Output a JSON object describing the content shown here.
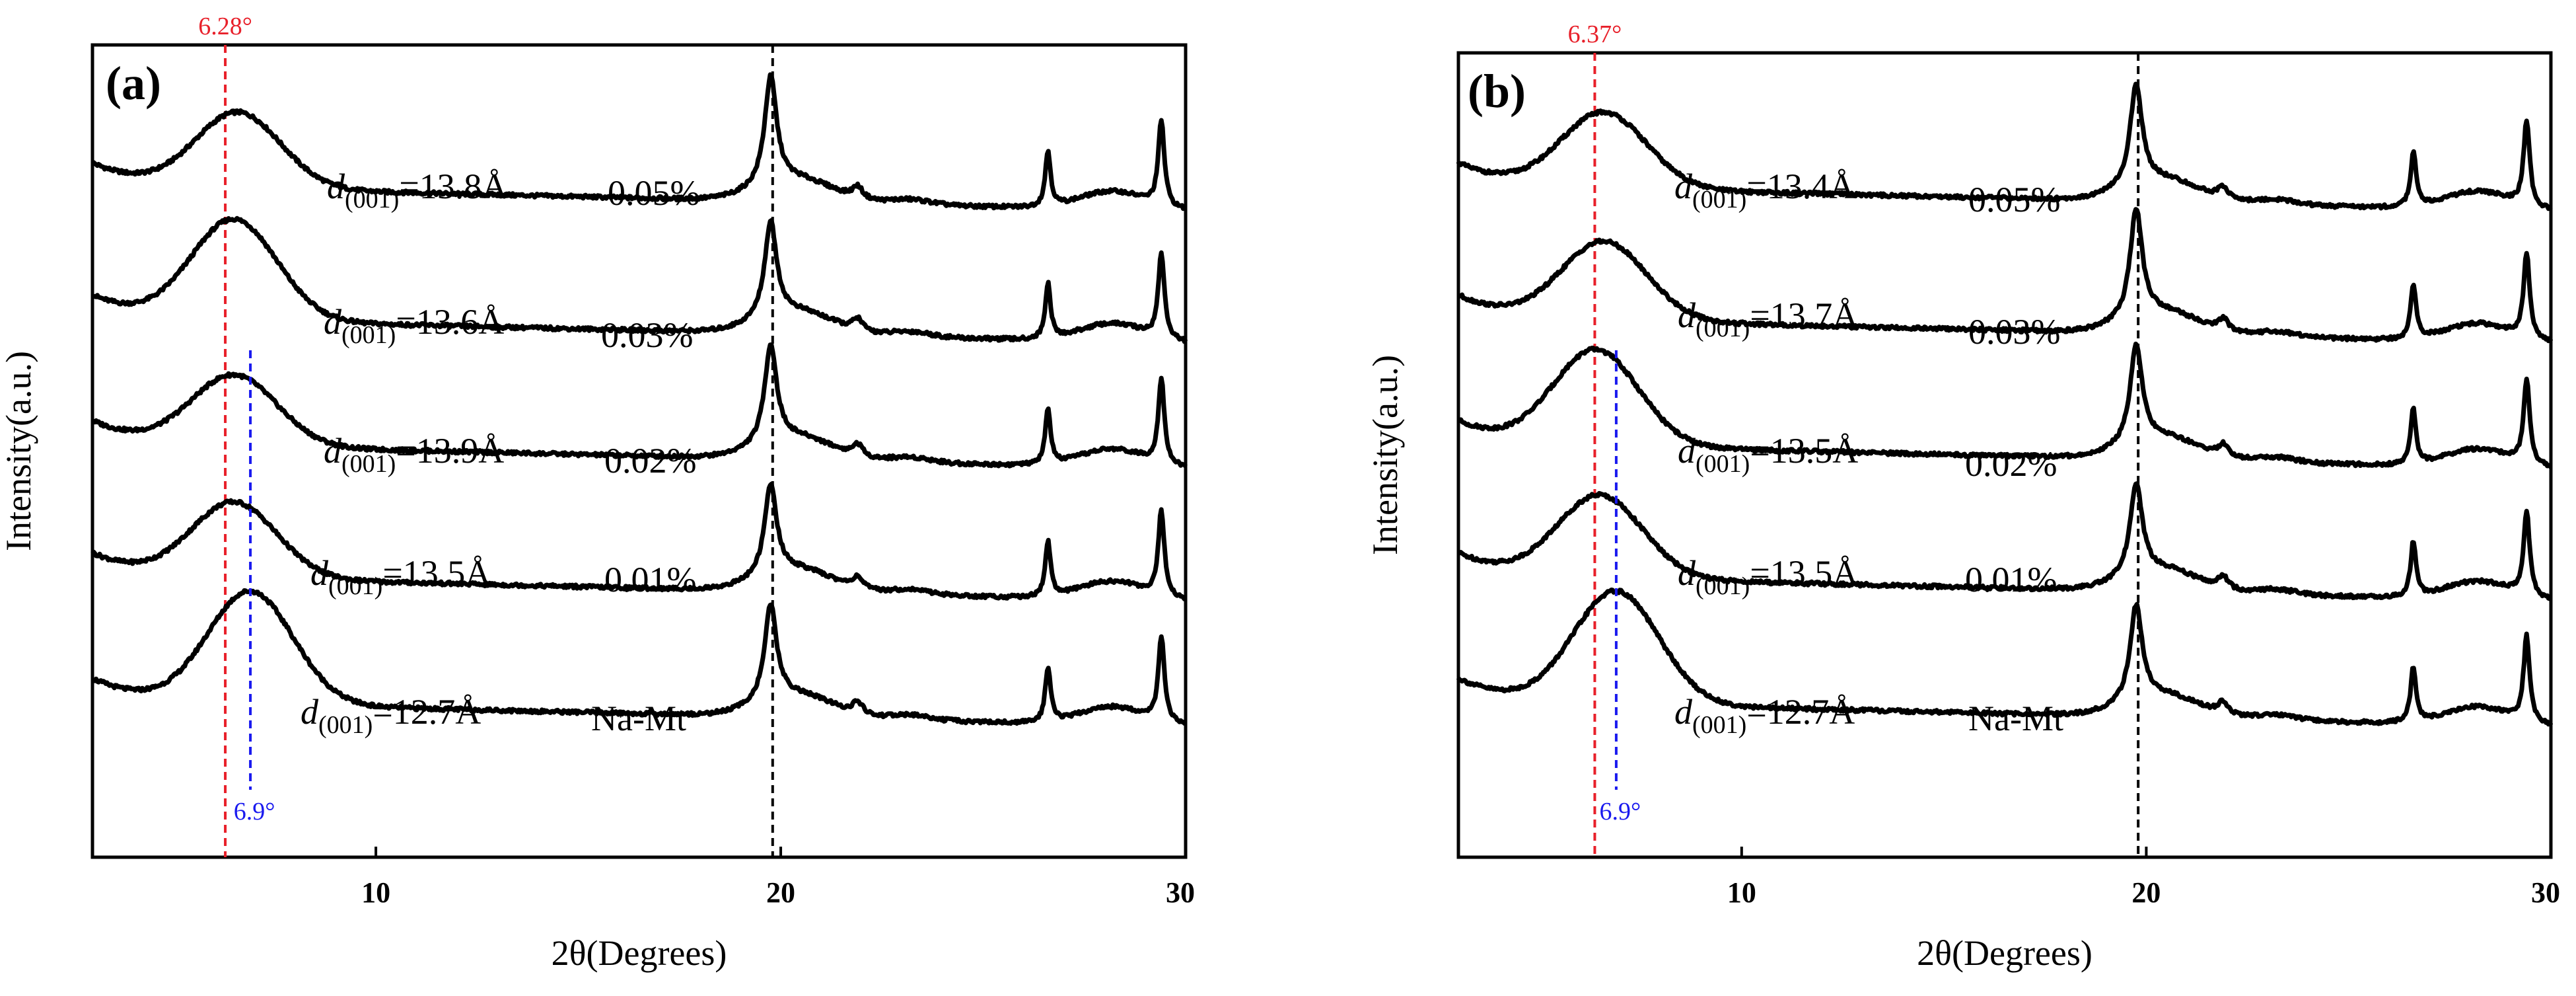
{
  "colors": {
    "trace": "#000000",
    "red_marker": "#e8202a",
    "blue_marker": "#1a1aef",
    "black_marker": "#000000"
  },
  "chart_data": [
    {
      "type": "line",
      "panel_label": "(a)",
      "xlabel": "2θ(Degrees)",
      "ylabel": "Intensity(a.u.)",
      "xlim": [
        3,
        30
      ],
      "xticks": [
        10,
        20,
        30
      ],
      "xtick_labels": [
        "10",
        "20",
        "30"
      ],
      "y_ticks_shown": false,
      "marker_lines": [
        {
          "x": 6.28,
          "label": "6.28°",
          "color": "red"
        },
        {
          "x": 19.8,
          "label": "",
          "color": "black"
        }
      ],
      "blue_marker": {
        "x": 6.9,
        "label": "6.9°"
      },
      "series": [
        {
          "name": "0.05%",
          "d_spacing": "13.8Å",
          "d_label": "d(001)=13.8Å",
          "baseline": 4.6,
          "low_peak_height": 0.75,
          "low_peak_pos": 6.6,
          "high_peak_height": 1.08
        },
        {
          "name": "0.03%",
          "d_spacing": "13.6Å",
          "d_label": "d(001)=13.6Å",
          "baseline": 3.4,
          "low_peak_height": 1.0,
          "low_peak_pos": 6.5,
          "high_peak_height": 0.95
        },
        {
          "name": "0.02%",
          "d_spacing": "13.9Å",
          "d_label": "d(001)=13.9Å",
          "baseline": 2.3,
          "low_peak_height": 0.7,
          "low_peak_pos": 6.5,
          "high_peak_height": 0.98
        },
        {
          "name": "0.01%",
          "d_spacing": "13.5Å",
          "d_label": "d(001)=13.5Å",
          "baseline": 1.15,
          "low_peak_height": 0.75,
          "low_peak_pos": 6.5,
          "high_peak_height": 0.9
        },
        {
          "name": "Na-Mt",
          "d_spacing": "12.7Å",
          "d_label": "d(001)=12.7Å",
          "baseline": 0.0,
          "low_peak_height": 1.12,
          "low_peak_pos": 6.9,
          "high_peak_height": 0.95
        }
      ]
    },
    {
      "type": "line",
      "panel_label": "(b)",
      "xlabel": "2θ(Degrees)",
      "ylabel": "Intensity(a.u.)",
      "xlim": [
        3,
        30
      ],
      "xticks": [
        10,
        20,
        30
      ],
      "xtick_labels": [
        "10",
        "20",
        "30"
      ],
      "y_ticks_shown": false,
      "marker_lines": [
        {
          "x": 6.37,
          "label": "6.37°",
          "color": "red"
        },
        {
          "x": 19.8,
          "label": "",
          "color": "black"
        }
      ],
      "blue_marker": {
        "x": 6.9,
        "label": "6.9°"
      },
      "series": [
        {
          "name": "0.05%",
          "d_spacing": "13.4Å",
          "d_label": "d(001)=13.4Å",
          "baseline": 4.6,
          "low_peak_height": 0.75,
          "low_peak_pos": 6.6,
          "high_peak_height": 1.0
        },
        {
          "name": "0.03%",
          "d_spacing": "13.7Å",
          "d_label": "d(001)=13.7Å",
          "baseline": 3.4,
          "low_peak_height": 0.78,
          "low_peak_pos": 6.6,
          "high_peak_height": 1.08
        },
        {
          "name": "0.02%",
          "d_spacing": "13.5Å",
          "d_label": "d(001)=13.5Å",
          "baseline": 2.3,
          "low_peak_height": 0.95,
          "low_peak_pos": 6.4,
          "high_peak_height": 0.98
        },
        {
          "name": "0.01%",
          "d_spacing": "13.5Å",
          "d_label": "d(001)=13.5Å",
          "baseline": 1.15,
          "low_peak_height": 0.82,
          "low_peak_pos": 6.5,
          "high_peak_height": 0.92
        },
        {
          "name": "Na-Mt",
          "d_spacing": "12.7Å",
          "d_label": "d(001)=12.7Å",
          "baseline": 0.0,
          "low_peak_height": 1.12,
          "low_peak_pos": 6.9,
          "high_peak_height": 0.95
        }
      ]
    }
  ]
}
